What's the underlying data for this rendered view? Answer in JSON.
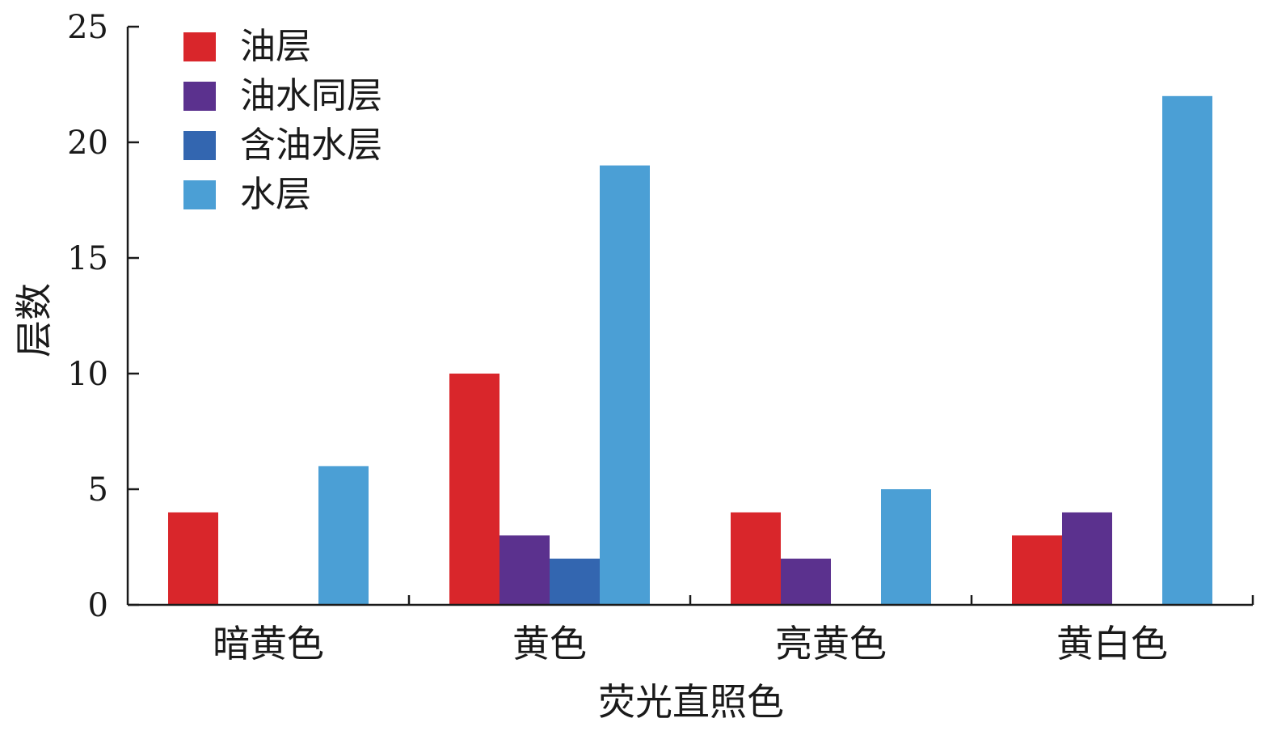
{
  "chart_data": {
    "type": "bar",
    "xlabel": "荧光直照色",
    "ylabel": "层数",
    "categories": [
      "暗黄色",
      "黄色",
      "亮黄色",
      "黄白色"
    ],
    "ylim": [
      0,
      25
    ],
    "yticks": [
      "0",
      "5",
      "10",
      "15",
      "20",
      "25"
    ],
    "grid": false,
    "legend_position": "top-left",
    "series": [
      {
        "name": "油层",
        "color": "#d9262b",
        "values": [
          4,
          10,
          4,
          3
        ]
      },
      {
        "name": "油水同层",
        "color": "#5b318e",
        "values": [
          0,
          3,
          2,
          4
        ]
      },
      {
        "name": "含油水层",
        "color": "#3366b0",
        "values": [
          0,
          2,
          0,
          0
        ]
      },
      {
        "name": "水层",
        "color": "#4b9fd5",
        "values": [
          6,
          19,
          5,
          22
        ]
      }
    ]
  }
}
